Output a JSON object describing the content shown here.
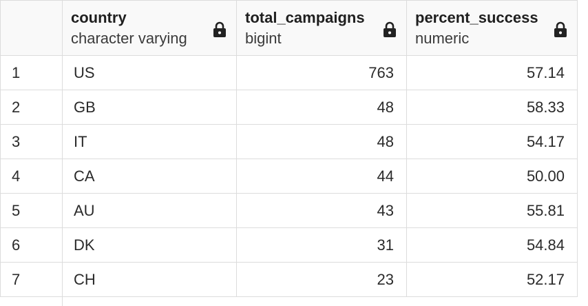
{
  "columns": [
    {
      "name": "country",
      "type": "character varying"
    },
    {
      "name": "total_campaigns",
      "type": "bigint"
    },
    {
      "name": "percent_success",
      "type": "numeric"
    }
  ],
  "rows": [
    {
      "num": "1",
      "country": "US",
      "total_campaigns": "763",
      "percent_success": "57.14"
    },
    {
      "num": "2",
      "country": "GB",
      "total_campaigns": "48",
      "percent_success": "58.33"
    },
    {
      "num": "3",
      "country": "IT",
      "total_campaigns": "48",
      "percent_success": "54.17"
    },
    {
      "num": "4",
      "country": "CA",
      "total_campaigns": "44",
      "percent_success": "50.00"
    },
    {
      "num": "5",
      "country": "AU",
      "total_campaigns": "43",
      "percent_success": "55.81"
    },
    {
      "num": "6",
      "country": "DK",
      "total_campaigns": "31",
      "percent_success": "54.84"
    },
    {
      "num": "7",
      "country": "CH",
      "total_campaigns": "23",
      "percent_success": "52.17"
    }
  ],
  "icons": {
    "column_lock": "lock-icon"
  },
  "colors": {
    "grid_line": "#dcdcdc",
    "header_bg": "#f9f9f9",
    "lock": "#222222"
  }
}
